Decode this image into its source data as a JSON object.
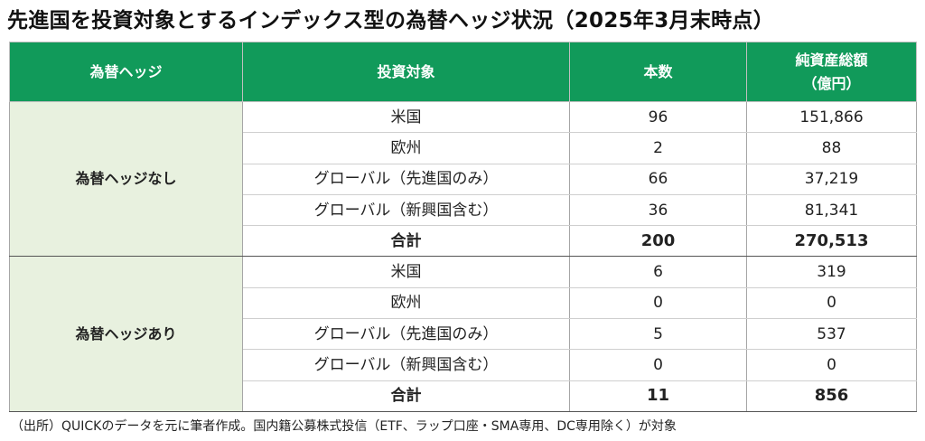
{
  "title": "先進国を投資対象とするインデックス型の為替ヘッジ状況（2025年3月末時点）",
  "headers": {
    "hedge": "為替ヘッジ",
    "target": "投資対象",
    "count": "本数",
    "nav_line1": "純資産総額",
    "nav_line2": "（億円）"
  },
  "groups": [
    {
      "label": "為替ヘッジなし",
      "rows": [
        {
          "target": "米国",
          "count": "96",
          "nav": "151,866"
        },
        {
          "target": "欧州",
          "count": "2",
          "nav": "88"
        },
        {
          "target": "グローバル（先進国のみ）",
          "count": "66",
          "nav": "37,219"
        },
        {
          "target": "グローバル（新興国含む）",
          "count": "36",
          "nav": "81,341"
        }
      ],
      "total": {
        "label": "合計",
        "count": "200",
        "nav": "270,513"
      }
    },
    {
      "label": "為替ヘッジあり",
      "rows": [
        {
          "target": "米国",
          "count": "6",
          "nav": "319"
        },
        {
          "target": "欧州",
          "count": "0",
          "nav": "0"
        },
        {
          "target": "グローバル（先進国のみ）",
          "count": "5",
          "nav": "537"
        },
        {
          "target": "グローバル（新興国含む）",
          "count": "0",
          "nav": "0"
        }
      ],
      "total": {
        "label": "合計",
        "count": "11",
        "nav": "856"
      }
    }
  ],
  "footnote": "（出所）QUICKのデータを元に筆者作成。国内籍公募株式投信（ETF、ラップ口座・SMA専用、DC専用除く）が対象"
}
